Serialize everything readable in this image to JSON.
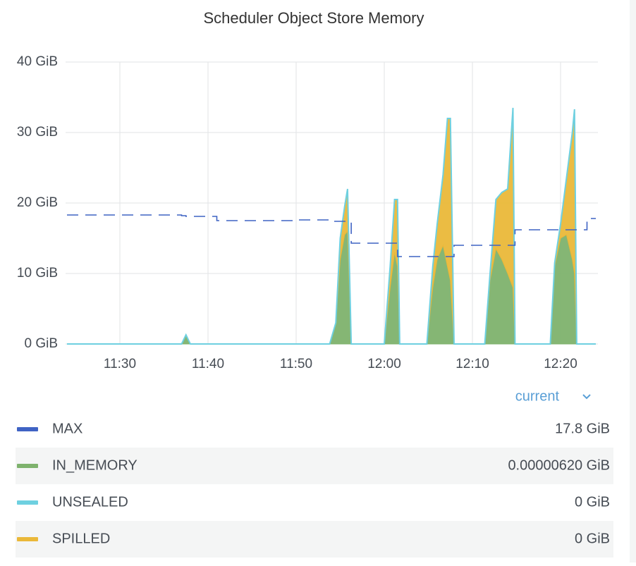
{
  "chart_data": {
    "type": "area",
    "title": "Scheduler Object Store Memory",
    "x": [
      "11:24:00",
      "11:37:00",
      "11:37:30",
      "11:38:00",
      "11:41:00",
      "11:50:00",
      "11:53:48",
      "11:54:30",
      "11:55:00",
      "11:55:30",
      "11:55:50",
      "11:56:15",
      "12:00:00",
      "12:00:40",
      "12:01:10",
      "12:01:30",
      "12:01:45",
      "12:04:50",
      "12:05:30",
      "12:06:00",
      "12:06:40",
      "12:07:10",
      "12:07:30",
      "12:07:55",
      "12:11:24",
      "12:12:00",
      "12:12:40",
      "12:13:20",
      "12:14:00",
      "12:14:36",
      "12:14:50",
      "12:16:00",
      "12:18:50",
      "12:19:20",
      "12:20:00",
      "12:20:40",
      "12:21:20",
      "12:21:35",
      "12:21:50",
      "12:23:00",
      "12:24:00"
    ],
    "xlim": [
      "11:24",
      "12:24"
    ],
    "xticks": [
      "11:30",
      "11:40",
      "11:50",
      "12:00",
      "12:10",
      "12:20"
    ],
    "ylim": [
      0,
      40
    ],
    "yticks": [
      {
        "value": 0,
        "label": "0 GiB"
      },
      {
        "value": 10,
        "label": "10 GiB"
      },
      {
        "value": 20,
        "label": "20 GiB"
      },
      {
        "value": 30,
        "label": "30 GiB"
      },
      {
        "value": 40,
        "label": "40 GiB"
      }
    ],
    "grid": true,
    "legend_header": "current",
    "series": [
      {
        "name": "MAX",
        "color": "#3f63c4",
        "dashed": true,
        "values": [
          18.3,
          18.2,
          18.1,
          18.1,
          17.5,
          17.6,
          17.4,
          17.4,
          17.4,
          17.4,
          17.4,
          14.3,
          14.3,
          14.3,
          14.3,
          12.4,
          12.4,
          12.4,
          12.4,
          12.4,
          12.4,
          12.4,
          12.4,
          14,
          14,
          14,
          14,
          14,
          14,
          14,
          16.2,
          16.2,
          16.2,
          16.2,
          16.2,
          16.2,
          16.2,
          16.2,
          16.2,
          17.8,
          17.8
        ],
        "current": {
          "value": 17.8,
          "label": "17.8 GiB"
        }
      },
      {
        "name": "IN_MEMORY",
        "color": "#7eb26d",
        "stack": true,
        "fill": true,
        "values": [
          0,
          0,
          1.3,
          0,
          0,
          0,
          0,
          3,
          12,
          15.5,
          16,
          0,
          0,
          8,
          13,
          11,
          0,
          0,
          8,
          12,
          14,
          11,
          9,
          0,
          0,
          9,
          13.5,
          12,
          10,
          8,
          0,
          0,
          0,
          11,
          15,
          15.5,
          12,
          10,
          0,
          0,
          0
        ],
        "current": {
          "value": 6.2e-06,
          "label": "0.00000620 GiB"
        }
      },
      {
        "name": "UNSEALED",
        "color": "#6ed0e0",
        "stack": true,
        "fill": false,
        "values": [
          0,
          0,
          0,
          0,
          0,
          0,
          0,
          0,
          0,
          0,
          0,
          0,
          0,
          0,
          0,
          0,
          0,
          0,
          0,
          0,
          0,
          0,
          0,
          0,
          0,
          0,
          0,
          0,
          0,
          0,
          0,
          0,
          0,
          0,
          0,
          0,
          0,
          0,
          0,
          0,
          0
        ],
        "current": {
          "value": 0,
          "label": "0 GiB"
        }
      },
      {
        "name": "SPILLED",
        "color": "#eab839",
        "stack": true,
        "fill": true,
        "values": [
          0,
          0,
          0,
          0,
          0,
          0,
          0,
          0,
          3,
          4,
          6,
          0,
          0,
          3,
          7.5,
          9.5,
          0,
          0,
          3,
          5,
          10,
          21,
          23,
          0,
          0,
          1,
          7,
          9.5,
          12,
          25.5,
          0,
          0,
          0,
          0.5,
          2,
          8,
          18,
          23.3,
          0,
          0,
          0
        ],
        "current": {
          "value": 0,
          "label": "0 GiB"
        }
      }
    ]
  }
}
